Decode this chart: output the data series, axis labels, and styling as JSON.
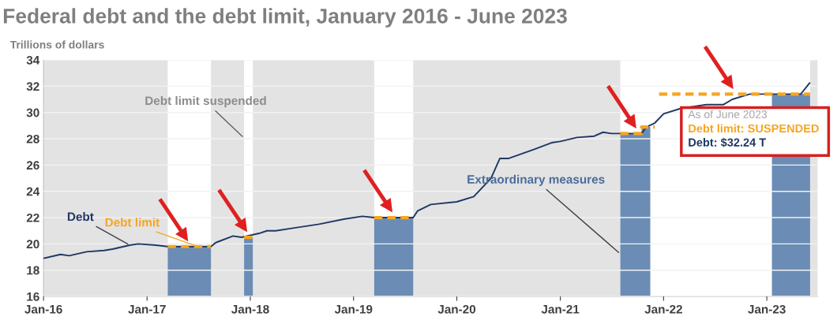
{
  "chart_data": {
    "type": "line",
    "title": "Federal debt and the debt limit, January 2016 - June 2023",
    "subtitle": "Trillions of dollars",
    "xlim": [
      "2016-01-01",
      "2023-06-30"
    ],
    "ylim": [
      16,
      34
    ],
    "yticks": [
      16,
      18,
      20,
      22,
      24,
      26,
      28,
      30,
      32,
      34
    ],
    "xticks": [
      {
        "value": "2016-01",
        "label": "Jan-16"
      },
      {
        "value": "2017-01",
        "label": "Jan-17"
      },
      {
        "value": "2018-01",
        "label": "Jan-18"
      },
      {
        "value": "2019-01",
        "label": "Jan-19"
      },
      {
        "value": "2020-01",
        "label": "Jan-20"
      },
      {
        "value": "2021-01",
        "label": "Jan-21"
      },
      {
        "value": "2022-01",
        "label": "Jan-22"
      },
      {
        "value": "2023-01",
        "label": "Jan-23"
      }
    ],
    "grid": "y",
    "legend": false,
    "series": [
      {
        "name": "Extraordinary measures",
        "type": "area",
        "color": "#6b8cb5",
        "x": [
          "2017-03-15",
          "2017-08-15",
          "2017-10-01",
          "2017-12-10",
          "2018-01-10",
          "2018-06-01",
          "2019-03-15",
          "2019-07-31",
          "2020-06-01",
          "2021-08-01",
          "2021-10-15",
          "2021-10-15",
          "2021-11-15",
          "2022-06-01",
          "2023-01-19",
          "2023-06-03"
        ],
        "values": [
          19.8,
          19.8,
          null,
          20.5,
          20.5,
          null,
          22.0,
          22.0,
          null,
          28.4,
          28.4,
          28.9,
          28.9,
          null,
          31.4,
          31.4
        ]
      },
      {
        "name": "Debt",
        "color": "#1f3864",
        "x": [
          "2016-01",
          "2016-03",
          "2016-04",
          "2016-06",
          "2016-08",
          "2016-09",
          "2016-11",
          "2016-12",
          "2017-02",
          "2017-03-15",
          "2017-08-15",
          "2017-09",
          "2017-11",
          "2017-12",
          "2018-02",
          "2018-03",
          "2018-04",
          "2018-06",
          "2018-09",
          "2018-12",
          "2019-02",
          "2019-03-15",
          "2019-07-31",
          "2019-08-15",
          "2019-10",
          "2020-01",
          "2020-03",
          "2020-05",
          "2020-06",
          "2020-07",
          "2020-10",
          "2020-12",
          "2021-01",
          "2021-03",
          "2021-05",
          "2021-06",
          "2021-07",
          "2021-08",
          "2021-10-15",
          "2021-11",
          "2021-12",
          "2022-01",
          "2022-03",
          "2022-06",
          "2022-08",
          "2022-09",
          "2022-11",
          "2023-01",
          "2023-05",
          "2023-06"
        ],
        "values": [
          18.9,
          19.2,
          19.1,
          19.4,
          19.5,
          19.6,
          19.9,
          20.0,
          19.9,
          19.8,
          19.8,
          20.1,
          20.6,
          20.5,
          20.8,
          21.0,
          21.0,
          21.2,
          21.5,
          21.9,
          22.1,
          22.0,
          22.0,
          22.5,
          23.0,
          23.2,
          23.6,
          25.0,
          26.5,
          26.5,
          27.2,
          27.7,
          27.8,
          28.1,
          28.2,
          28.5,
          28.4,
          28.4,
          28.4,
          28.9,
          29.2,
          29.9,
          30.3,
          30.6,
          30.6,
          31.0,
          31.4,
          31.4,
          31.4,
          32.24
        ]
      },
      {
        "name": "Debt limit",
        "line_style": "dashed",
        "color": "#f5a623",
        "x": [
          "2017-03-15",
          "2017-08-15",
          "2017-10-01",
          "2017-12-10",
          "2018-01-10",
          "2018-06-01",
          "2019-03-15",
          "2019-07-31",
          "2020-06-01",
          "2021-08-01",
          "2021-10-15",
          "2021-10-15",
          "2021-12-01",
          "2021-12-08",
          "2021-12-16",
          "2023-06-03"
        ],
        "values": [
          19.8,
          19.8,
          null,
          20.5,
          20.5,
          null,
          22.0,
          22.0,
          null,
          28.4,
          28.4,
          28.9,
          28.9,
          null,
          31.4,
          31.4
        ]
      }
    ],
    "bands": [
      {
        "axis": "x",
        "from": "2016-01-01",
        "to": "2017-03-15",
        "color": "#e3e3e3"
      },
      {
        "axis": "x",
        "from": "2017-08-15",
        "to": "2017-12-10",
        "color": "#e3e3e3",
        "label": "Debt limit suspended"
      },
      {
        "axis": "x",
        "from": "2018-01-10",
        "to": "2019-03-15",
        "color": "#e3e3e3"
      },
      {
        "axis": "x",
        "from": "2019-07-31",
        "to": "2021-08-01",
        "color": "#e3e3e3"
      },
      {
        "axis": "x",
        "from": "2023-06-03",
        "to": "2023-06-30",
        "color": "#e3e3e3"
      }
    ],
    "annotations": [
      "As of June 2023",
      "Debt limit: SUSPENDED",
      "Debt: $32.24 T"
    ]
  }
}
